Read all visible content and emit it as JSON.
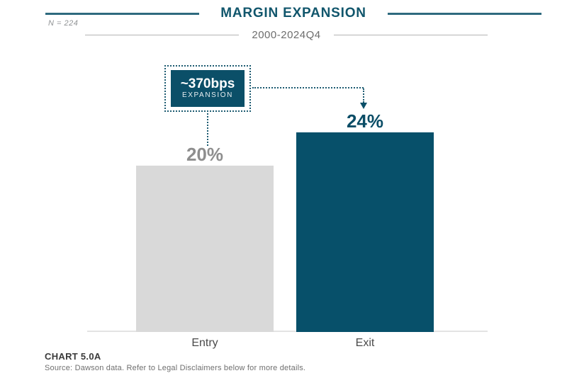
{
  "header": {
    "title": "MARGIN EXPANSION",
    "subtitle": "2000-2024Q4",
    "sample_size": "N = 224"
  },
  "annotation": {
    "value": "~370bps",
    "label": "EXPANSION"
  },
  "chart_data": {
    "type": "bar",
    "title": "MARGIN EXPANSION",
    "subtitle": "2000-2024Q4",
    "sample_size": "N = 224",
    "categories": [
      "Entry",
      "Exit"
    ],
    "values": [
      20,
      24
    ],
    "value_labels": [
      "20%",
      "24%"
    ],
    "bar_colors": [
      "#d9d9d9",
      "#07506a"
    ],
    "ylim": [
      0,
      28
    ],
    "xlabel": "",
    "ylabel": "",
    "grid": false,
    "legend": false,
    "annotation": "~370bps EXPANSION (difference between Entry 20% and Exit 24%)"
  },
  "footer": {
    "chart_label": "CHART 5.0A",
    "source": "Source: Dawson data. Refer to Legal Disclaimers below for more details."
  },
  "colors": {
    "accent_teal": "#0b4f68",
    "title_teal": "#11566c",
    "entry_gray": "#d9d9d9",
    "label_gray": "#8e8e8e",
    "axis_gray": "#e3e3e3"
  }
}
